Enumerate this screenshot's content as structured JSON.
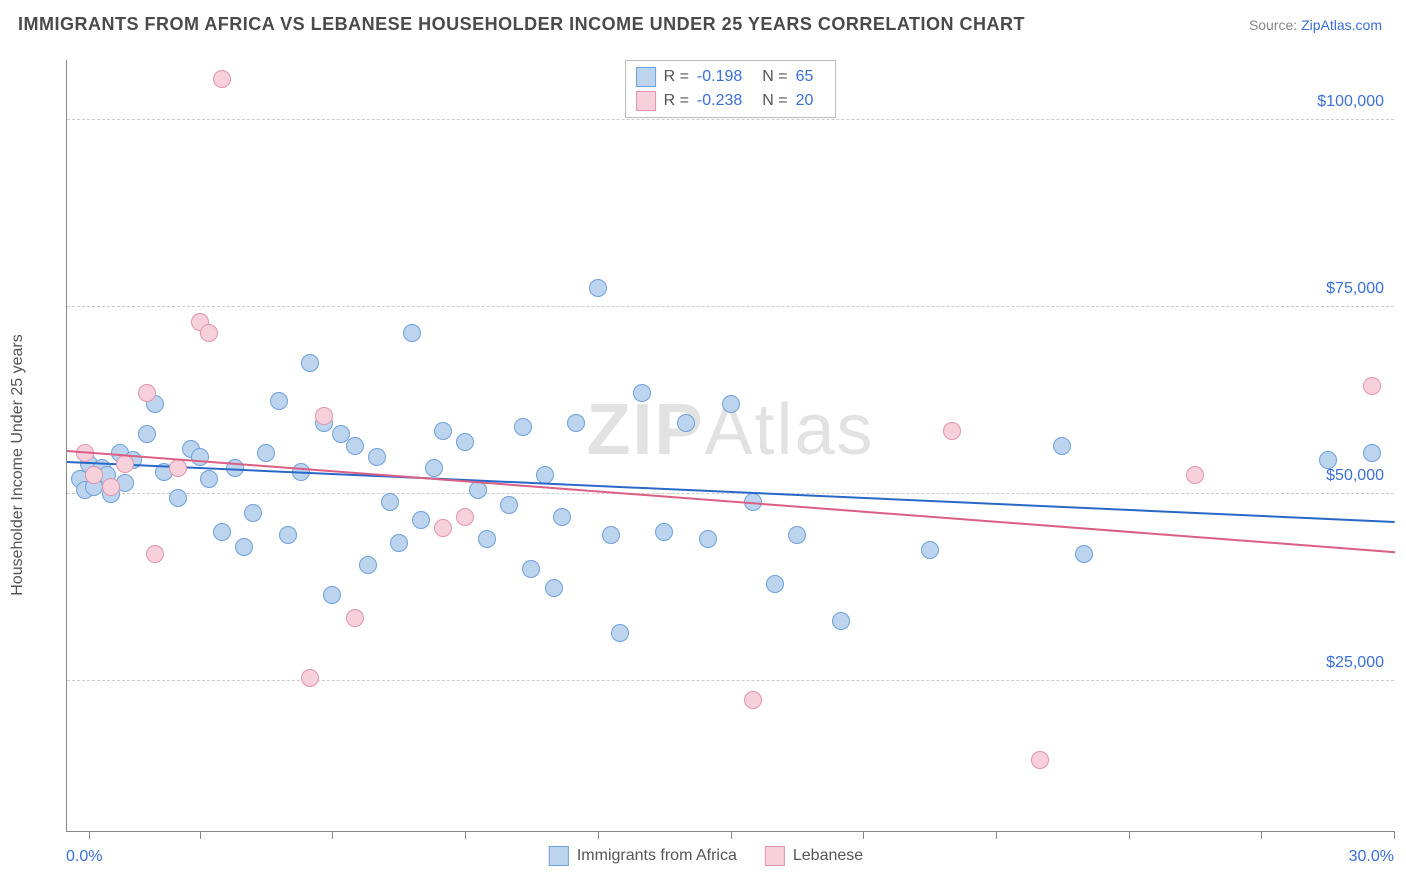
{
  "header": {
    "title": "IMMIGRANTS FROM AFRICA VS LEBANESE HOUSEHOLDER INCOME UNDER 25 YEARS CORRELATION CHART",
    "source_label": "Source:",
    "source_name": "ZipAtlas.com"
  },
  "ylabel": "Householder Income Under 25 years",
  "watermark_prefix": "ZIP",
  "watermark_suffix": "Atlas",
  "chart": {
    "type": "scatter",
    "xlim": [
      0,
      30
    ],
    "ylim": [
      5000,
      108000
    ],
    "x_axis_start_label": "0.0%",
    "x_axis_end_label": "30.0%",
    "y_gridlines": [
      25000,
      50000,
      75000,
      100000
    ],
    "y_tick_labels": [
      "$25,000",
      "$50,000",
      "$75,000",
      "$100,000"
    ],
    "x_ticks": [
      0.5,
      3,
      6,
      9,
      12,
      15,
      18,
      21,
      24,
      27,
      30
    ],
    "grid_color": "#cccccc",
    "background_color": "#ffffff",
    "label_fontsize": 16,
    "point_radius": 9,
    "series": [
      {
        "name": "Immigrants from Africa",
        "fill": "#bcd4ee",
        "stroke": "#6fa0db",
        "trend_color": "#2968c8",
        "R": "-0.198",
        "N": "65",
        "trend": {
          "x1": 0,
          "y1": 54500,
          "x2": 30,
          "y2": 46500
        },
        "points": [
          [
            0.3,
            52000
          ],
          [
            0.4,
            50500
          ],
          [
            0.5,
            54000
          ],
          [
            0.6,
            51000
          ],
          [
            0.8,
            53500
          ],
          [
            0.9,
            52500
          ],
          [
            1.0,
            50000
          ],
          [
            1.2,
            55500
          ],
          [
            1.3,
            51500
          ],
          [
            1.5,
            54500
          ],
          [
            1.8,
            58000
          ],
          [
            2.0,
            62000
          ],
          [
            2.2,
            53000
          ],
          [
            2.5,
            49500
          ],
          [
            2.8,
            56000
          ],
          [
            3.0,
            55000
          ],
          [
            3.2,
            52000
          ],
          [
            3.5,
            45000
          ],
          [
            3.8,
            53500
          ],
          [
            4.0,
            43000
          ],
          [
            4.2,
            47500
          ],
          [
            4.5,
            55500
          ],
          [
            4.8,
            62500
          ],
          [
            5.0,
            44500
          ],
          [
            5.3,
            53000
          ],
          [
            5.5,
            67500
          ],
          [
            5.8,
            59500
          ],
          [
            6.0,
            36500
          ],
          [
            6.2,
            58000
          ],
          [
            6.5,
            56500
          ],
          [
            6.8,
            40500
          ],
          [
            7.0,
            55000
          ],
          [
            7.3,
            49000
          ],
          [
            7.5,
            43500
          ],
          [
            7.8,
            71500
          ],
          [
            8.0,
            46500
          ],
          [
            8.3,
            53500
          ],
          [
            8.5,
            58500
          ],
          [
            9.0,
            57000
          ],
          [
            9.3,
            50500
          ],
          [
            9.5,
            44000
          ],
          [
            10.0,
            48500
          ],
          [
            10.3,
            59000
          ],
          [
            10.5,
            40000
          ],
          [
            10.8,
            52500
          ],
          [
            11.0,
            37500
          ],
          [
            11.2,
            47000
          ],
          [
            11.5,
            59500
          ],
          [
            12.0,
            77500
          ],
          [
            12.3,
            44500
          ],
          [
            12.5,
            31500
          ],
          [
            13.0,
            63500
          ],
          [
            13.5,
            45000
          ],
          [
            14.0,
            59500
          ],
          [
            14.5,
            44000
          ],
          [
            15.0,
            62000
          ],
          [
            15.5,
            49000
          ],
          [
            16.0,
            38000
          ],
          [
            16.5,
            44500
          ],
          [
            17.5,
            33000
          ],
          [
            19.5,
            42500
          ],
          [
            22.5,
            56500
          ],
          [
            23.0,
            42000
          ],
          [
            28.5,
            54500
          ],
          [
            29.5,
            55500
          ]
        ]
      },
      {
        "name": "Lebanese",
        "fill": "#f6d1db",
        "stroke": "#e394ab",
        "trend_color": "#db5e84",
        "R": "-0.238",
        "N": "20",
        "trend": {
          "x1": 0,
          "y1": 56000,
          "x2": 30,
          "y2": 42500
        },
        "points": [
          [
            0.4,
            55500
          ],
          [
            0.6,
            52500
          ],
          [
            1.0,
            51000
          ],
          [
            1.3,
            54000
          ],
          [
            1.8,
            63500
          ],
          [
            2.0,
            42000
          ],
          [
            2.5,
            53500
          ],
          [
            3.0,
            73000
          ],
          [
            3.2,
            71500
          ],
          [
            3.5,
            105500
          ],
          [
            5.5,
            25500
          ],
          [
            5.8,
            60500
          ],
          [
            6.5,
            33500
          ],
          [
            8.5,
            45500
          ],
          [
            9.0,
            47000
          ],
          [
            15.5,
            22500
          ],
          [
            20.0,
            58500
          ],
          [
            22.0,
            14500
          ],
          [
            25.5,
            52500
          ],
          [
            29.5,
            64500
          ]
        ]
      }
    ]
  },
  "legend_top": {
    "r_label": "R =",
    "n_label": "N ="
  }
}
